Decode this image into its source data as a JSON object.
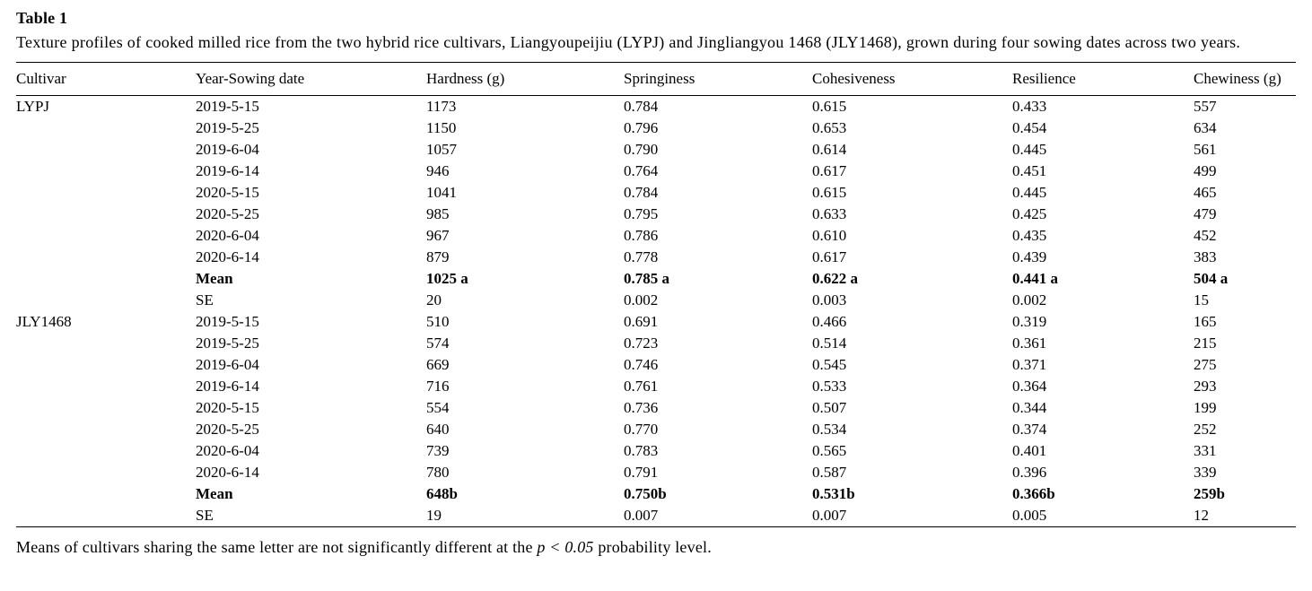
{
  "colors": {
    "text": "#000000",
    "background": "#ffffff",
    "rule": "#000000"
  },
  "table": {
    "label": "Table 1",
    "caption": "Texture profiles of cooked milled rice from the two hybrid rice cultivars, Liangyoupeijiu (LYPJ) and Jingliangyou 1468 (JLY1468), grown during four sowing dates across two years.",
    "columns": [
      "Cultivar",
      "Year-Sowing date",
      "Hardness (g)",
      "Springiness",
      "Cohesiveness",
      "Resilience",
      "Chewiness (g)"
    ],
    "rows": [
      {
        "cells": [
          "LYPJ",
          "2019-5-15",
          "1173",
          "0.784",
          "0.615",
          "0.433",
          "557"
        ],
        "bold": false
      },
      {
        "cells": [
          "",
          "2019-5-25",
          "1150",
          "0.796",
          "0.653",
          "0.454",
          "634"
        ],
        "bold": false
      },
      {
        "cells": [
          "",
          "2019-6-04",
          "1057",
          "0.790",
          "0.614",
          "0.445",
          "561"
        ],
        "bold": false
      },
      {
        "cells": [
          "",
          "2019-6-14",
          "946",
          "0.764",
          "0.617",
          "0.451",
          "499"
        ],
        "bold": false
      },
      {
        "cells": [
          "",
          "2020-5-15",
          "1041",
          "0.784",
          "0.615",
          "0.445",
          "465"
        ],
        "bold": false
      },
      {
        "cells": [
          "",
          "2020-5-25",
          "985",
          "0.795",
          "0.633",
          "0.425",
          "479"
        ],
        "bold": false
      },
      {
        "cells": [
          "",
          "2020-6-04",
          "967",
          "0.786",
          "0.610",
          "0.435",
          "452"
        ],
        "bold": false
      },
      {
        "cells": [
          "",
          "2020-6-14",
          "879",
          "0.778",
          "0.617",
          "0.439",
          "383"
        ],
        "bold": false
      },
      {
        "cells": [
          "",
          "Mean",
          "1025 a",
          "0.785 a",
          "0.622 a",
          "0.441 a",
          "504 a"
        ],
        "bold": true
      },
      {
        "cells": [
          "",
          "SE",
          "20",
          "0.002",
          "0.003",
          "0.002",
          "15"
        ],
        "bold": false
      },
      {
        "cells": [
          "JLY1468",
          "2019-5-15",
          "510",
          "0.691",
          "0.466",
          "0.319",
          "165"
        ],
        "bold": false
      },
      {
        "cells": [
          "",
          "2019-5-25",
          "574",
          "0.723",
          "0.514",
          "0.361",
          "215"
        ],
        "bold": false
      },
      {
        "cells": [
          "",
          "2019-6-04",
          "669",
          "0.746",
          "0.545",
          "0.371",
          "275"
        ],
        "bold": false
      },
      {
        "cells": [
          "",
          "2019-6-14",
          "716",
          "0.761",
          "0.533",
          "0.364",
          "293"
        ],
        "bold": false
      },
      {
        "cells": [
          "",
          "2020-5-15",
          "554",
          "0.736",
          "0.507",
          "0.344",
          "199"
        ],
        "bold": false
      },
      {
        "cells": [
          "",
          "2020-5-25",
          "640",
          "0.770",
          "0.534",
          "0.374",
          "252"
        ],
        "bold": false
      },
      {
        "cells": [
          "",
          "2020-6-04",
          "739",
          "0.783",
          "0.565",
          "0.401",
          "331"
        ],
        "bold": false
      },
      {
        "cells": [
          "",
          "2020-6-14",
          "780",
          "0.791",
          "0.587",
          "0.396",
          "339"
        ],
        "bold": false
      },
      {
        "cells": [
          "",
          "Mean",
          "648b",
          "0.750b",
          "0.531b",
          "0.366b",
          "259b"
        ],
        "bold": true
      },
      {
        "cells": [
          "",
          "SE",
          "19",
          "0.007",
          "0.007",
          "0.005",
          "12"
        ],
        "bold": false
      }
    ]
  },
  "footnote": {
    "prefix": "Means of cultivars sharing the same letter are not significantly different at the ",
    "italic": "p < 0.05",
    "suffix": " probability level."
  }
}
